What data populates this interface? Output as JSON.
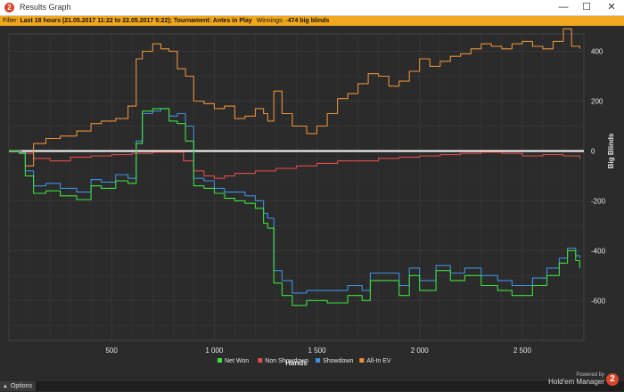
{
  "window": {
    "title": "Results Graph",
    "minimize_glyph": "—",
    "maximize_glyph": "☐",
    "close_glyph": "✕",
    "app_icon_glyph": "2"
  },
  "filter": {
    "prefix": "Filter:",
    "text": "Last 18 hours (21.05.2017 11:22 to 22.05.2017 5:22); Tournament: Antes in Play",
    "winnings_label": "Winnings:",
    "winnings_value": "-474 big blinds"
  },
  "footer": {
    "options_label": "Options",
    "powered_by": "Powered by",
    "brand": "Hold'em Manager",
    "logo_glyph": "2"
  },
  "colors": {
    "background": "#2b2b2b",
    "grid": "#3a3a3a",
    "axis_text": "#e6e6e6",
    "zero_line": "#ffffff",
    "net_won": "#3ee03e",
    "non_showdown": "#e24b4b",
    "showdown": "#3f8fe0",
    "all_in_ev": "#e8913a"
  },
  "chart_data": {
    "type": "line",
    "xlabel": "Hands",
    "ylabel": "Big Blinds",
    "xlim": [
      0,
      2800
    ],
    "ylim": [
      -760,
      470
    ],
    "x_ticks": [
      500,
      1000,
      1500,
      2000,
      2500
    ],
    "x_tick_labels": [
      "500",
      "1 000",
      "1 500",
      "2 000",
      "2 500"
    ],
    "y_ticks": [
      400,
      200,
      0,
      -200,
      -400,
      -600
    ],
    "y_tick_labels": [
      "400",
      "200",
      "0",
      "-200",
      "-400",
      "-600"
    ],
    "grid": true,
    "legend_position": "bottom-center",
    "series": [
      {
        "name": "Net Won",
        "color": "#3ee03e",
        "points": [
          [
            0,
            0
          ],
          [
            50,
            -10
          ],
          [
            80,
            -100
          ],
          [
            120,
            -170
          ],
          [
            180,
            -160
          ],
          [
            250,
            -180
          ],
          [
            330,
            -195
          ],
          [
            400,
            -140
          ],
          [
            450,
            -150
          ],
          [
            520,
            -120
          ],
          [
            580,
            -130
          ],
          [
            620,
            30
          ],
          [
            650,
            160
          ],
          [
            700,
            170
          ],
          [
            740,
            170
          ],
          [
            780,
            120
          ],
          [
            820,
            110
          ],
          [
            860,
            40
          ],
          [
            900,
            -140
          ],
          [
            950,
            -150
          ],
          [
            1000,
            -170
          ],
          [
            1050,
            -190
          ],
          [
            1100,
            -200
          ],
          [
            1150,
            -210
          ],
          [
            1200,
            -230
          ],
          [
            1240,
            -290
          ],
          [
            1260,
            -310
          ],
          [
            1290,
            -530
          ],
          [
            1330,
            -580
          ],
          [
            1380,
            -620
          ],
          [
            1450,
            -600
          ],
          [
            1550,
            -610
          ],
          [
            1650,
            -580
          ],
          [
            1720,
            -600
          ],
          [
            1760,
            -520
          ],
          [
            1820,
            -520
          ],
          [
            1900,
            -580
          ],
          [
            1950,
            -500
          ],
          [
            2000,
            -560
          ],
          [
            2080,
            -480
          ],
          [
            2150,
            -520
          ],
          [
            2220,
            -500
          ],
          [
            2300,
            -540
          ],
          [
            2380,
            -560
          ],
          [
            2450,
            -580
          ],
          [
            2550,
            -540
          ],
          [
            2620,
            -500
          ],
          [
            2680,
            -450
          ],
          [
            2720,
            -400
          ],
          [
            2760,
            -440
          ],
          [
            2780,
            -470
          ]
        ]
      },
      {
        "name": "Non Showdown",
        "color": "#e24b4b",
        "points": [
          [
            0,
            0
          ],
          [
            60,
            -10
          ],
          [
            120,
            -30
          ],
          [
            200,
            -40
          ],
          [
            300,
            -25
          ],
          [
            400,
            -20
          ],
          [
            500,
            -15
          ],
          [
            600,
            -10
          ],
          [
            700,
            -5
          ],
          [
            780,
            -5
          ],
          [
            850,
            -40
          ],
          [
            900,
            -80
          ],
          [
            950,
            -100
          ],
          [
            1000,
            -110
          ],
          [
            1050,
            -100
          ],
          [
            1100,
            -90
          ],
          [
            1200,
            -80
          ],
          [
            1300,
            -70
          ],
          [
            1400,
            -60
          ],
          [
            1500,
            -50
          ],
          [
            1600,
            -40
          ],
          [
            1700,
            -40
          ],
          [
            1800,
            -30
          ],
          [
            1900,
            -25
          ],
          [
            2000,
            -20
          ],
          [
            2100,
            -15
          ],
          [
            2200,
            -10
          ],
          [
            2300,
            -5
          ],
          [
            2400,
            -10
          ],
          [
            2500,
            -20
          ],
          [
            2600,
            -15
          ],
          [
            2700,
            -20
          ],
          [
            2780,
            -30
          ]
        ]
      },
      {
        "name": "Showdown",
        "color": "#3f8fe0",
        "points": [
          [
            0,
            0
          ],
          [
            50,
            -5
          ],
          [
            80,
            -80
          ],
          [
            120,
            -140
          ],
          [
            180,
            -130
          ],
          [
            250,
            -150
          ],
          [
            330,
            -165
          ],
          [
            400,
            -115
          ],
          [
            450,
            -125
          ],
          [
            520,
            -95
          ],
          [
            580,
            -110
          ],
          [
            620,
            40
          ],
          [
            650,
            150
          ],
          [
            700,
            160
          ],
          [
            740,
            170
          ],
          [
            780,
            140
          ],
          [
            820,
            150
          ],
          [
            860,
            100
          ],
          [
            900,
            -110
          ],
          [
            950,
            -120
          ],
          [
            1000,
            -150
          ],
          [
            1050,
            -165
          ],
          [
            1100,
            -165
          ],
          [
            1150,
            -180
          ],
          [
            1200,
            -200
          ],
          [
            1240,
            -250
          ],
          [
            1260,
            -270
          ],
          [
            1290,
            -480
          ],
          [
            1330,
            -520
          ],
          [
            1380,
            -570
          ],
          [
            1450,
            -560
          ],
          [
            1550,
            -560
          ],
          [
            1650,
            -540
          ],
          [
            1720,
            -560
          ],
          [
            1760,
            -490
          ],
          [
            1820,
            -490
          ],
          [
            1900,
            -540
          ],
          [
            1950,
            -470
          ],
          [
            2000,
            -520
          ],
          [
            2080,
            -460
          ],
          [
            2150,
            -490
          ],
          [
            2220,
            -470
          ],
          [
            2300,
            -500
          ],
          [
            2380,
            -520
          ],
          [
            2450,
            -540
          ],
          [
            2550,
            -510
          ],
          [
            2620,
            -470
          ],
          [
            2680,
            -430
          ],
          [
            2720,
            -390
          ],
          [
            2760,
            -420
          ],
          [
            2780,
            -430
          ]
        ]
      },
      {
        "name": "All-In EV",
        "color": "#e8913a",
        "points": [
          [
            0,
            0
          ],
          [
            50,
            -5
          ],
          [
            80,
            -60
          ],
          [
            120,
            30
          ],
          [
            180,
            50
          ],
          [
            250,
            60
          ],
          [
            330,
            80
          ],
          [
            400,
            110
          ],
          [
            450,
            120
          ],
          [
            520,
            130
          ],
          [
            580,
            180
          ],
          [
            620,
            370
          ],
          [
            650,
            400
          ],
          [
            700,
            430
          ],
          [
            740,
            410
          ],
          [
            780,
            400
          ],
          [
            820,
            330
          ],
          [
            860,
            300
          ],
          [
            900,
            200
          ],
          [
            950,
            190
          ],
          [
            1000,
            170
          ],
          [
            1050,
            180
          ],
          [
            1100,
            130
          ],
          [
            1150,
            140
          ],
          [
            1200,
            170
          ],
          [
            1240,
            150
          ],
          [
            1260,
            120
          ],
          [
            1290,
            240
          ],
          [
            1330,
            150
          ],
          [
            1380,
            100
          ],
          [
            1450,
            70
          ],
          [
            1500,
            100
          ],
          [
            1550,
            150
          ],
          [
            1600,
            210
          ],
          [
            1650,
            230
          ],
          [
            1700,
            270
          ],
          [
            1750,
            310
          ],
          [
            1800,
            300
          ],
          [
            1850,
            260
          ],
          [
            1900,
            280
          ],
          [
            1950,
            320
          ],
          [
            2000,
            370
          ],
          [
            2050,
            340
          ],
          [
            2100,
            360
          ],
          [
            2150,
            380
          ],
          [
            2200,
            390
          ],
          [
            2250,
            410
          ],
          [
            2300,
            430
          ],
          [
            2350,
            420
          ],
          [
            2400,
            410
          ],
          [
            2450,
            430
          ],
          [
            2500,
            440
          ],
          [
            2550,
            420
          ],
          [
            2600,
            410
          ],
          [
            2650,
            440
          ],
          [
            2700,
            490
          ],
          [
            2740,
            420
          ],
          [
            2780,
            410
          ]
        ]
      }
    ]
  }
}
